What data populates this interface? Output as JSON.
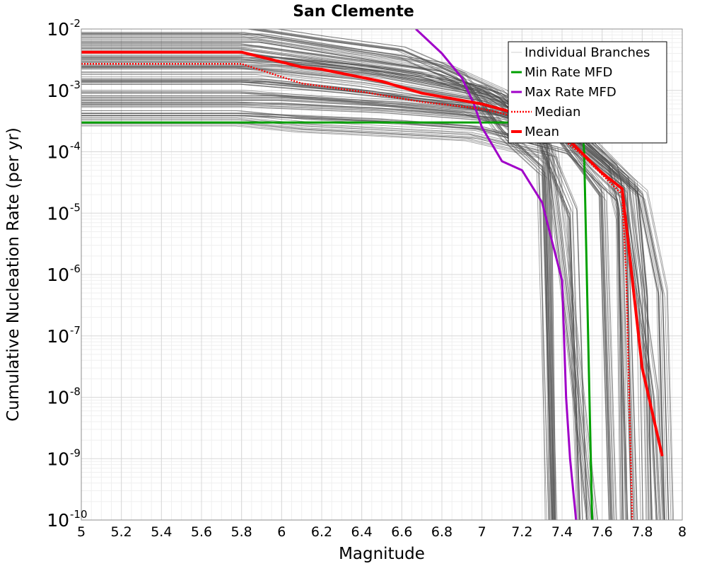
{
  "chart_data": {
    "type": "line",
    "title": "San Clemente",
    "xlabel": "Magnitude",
    "ylabel": "Cumulative Nucleation Rate (per yr)",
    "xlim": [
      5,
      8
    ],
    "ylim": [
      1e-10,
      0.01
    ],
    "yscale": "log",
    "grid": true,
    "legend_position": "top-right",
    "x_ticks": [
      "5",
      "5.2",
      "5.4",
      "5.6",
      "5.8",
      "6",
      "6.2",
      "6.4",
      "6.6",
      "6.8",
      "7",
      "7.2",
      "7.4",
      "7.6",
      "7.8",
      "8"
    ],
    "y_ticks": [
      {
        "base": "10",
        "exp": "-10",
        "value": 1e-10
      },
      {
        "base": "10",
        "exp": "-9",
        "value": 1e-09
      },
      {
        "base": "10",
        "exp": "-8",
        "value": 1e-08
      },
      {
        "base": "10",
        "exp": "-7",
        "value": 1e-07
      },
      {
        "base": "10",
        "exp": "-6",
        "value": 1e-06
      },
      {
        "base": "10",
        "exp": "-5",
        "value": 1e-05
      },
      {
        "base": "10",
        "exp": "-4",
        "value": 0.0001
      },
      {
        "base": "10",
        "exp": "-3",
        "value": 0.001
      },
      {
        "base": "10",
        "exp": "-2",
        "value": 0.01
      }
    ],
    "series": [
      {
        "name": "Individual Branches",
        "color": "#4d4d4d",
        "style": "thin",
        "note_count_shown": "many",
        "representative_curves": [
          {
            "x": [
              5,
              5.8,
              6.2,
              6.6,
              6.9,
              7.1,
              7.3,
              7.35
            ],
            "y": [
              0.0095,
              0.0095,
              0.006,
              0.004,
              0.0015,
              0.0002,
              5e-05,
              1e-10
            ]
          },
          {
            "x": [
              5,
              5.9,
              6.3,
              6.8,
              7.1,
              7.3,
              7.45,
              7.5
            ],
            "y": [
              0.0065,
              0.0065,
              0.004,
              0.0022,
              0.0008,
              0.00015,
              1e-05,
              1e-10
            ]
          },
          {
            "x": [
              5,
              5.8,
              6.2,
              6.7,
              7.1,
              7.4,
              7.6,
              7.65
            ],
            "y": [
              0.0045,
              0.0045,
              0.003,
              0.0018,
              0.0007,
              0.00015,
              2e-05,
              1e-10
            ]
          },
          {
            "x": [
              5,
              5.8,
              6.4,
              7.0,
              7.4,
              7.65,
              7.7,
              7.72
            ],
            "y": [
              0.003,
              0.003,
              0.002,
              0.0009,
              0.00025,
              5e-05,
              1e-05,
              1e-10
            ]
          },
          {
            "x": [
              5,
              5.9,
              6.4,
              7.0,
              7.5,
              7.75,
              7.8,
              7.82
            ],
            "y": [
              0.0018,
              0.0018,
              0.0012,
              0.0006,
              0.0002,
              3e-05,
              5e-07,
              1e-10
            ]
          },
          {
            "x": [
              5,
              5.8,
              6.3,
              6.9,
              7.4,
              7.7,
              7.85,
              7.88
            ],
            "y": [
              0.0011,
              0.0011,
              0.0008,
              0.0005,
              0.00018,
              3e-05,
              1e-08,
              1e-10
            ]
          },
          {
            "x": [
              5,
              6.0,
              6.6,
              7.1,
              7.5,
              7.8,
              7.9,
              7.93
            ],
            "y": [
              0.0007,
              0.0007,
              0.00055,
              0.0004,
              0.00015,
              2e-05,
              5e-07,
              1e-10
            ]
          },
          {
            "x": [
              5,
              5.8,
              6.5,
              7.0,
              7.45,
              7.7,
              7.75
            ],
            "y": [
              0.0005,
              0.0005,
              0.0004,
              0.0003,
              0.00012,
              2e-05,
              1e-10
            ]
          },
          {
            "x": [
              5,
              5.8,
              6.1,
              6.5,
              6.95,
              7.35,
              7.55
            ],
            "y": [
              0.00035,
              0.00035,
              0.00028,
              0.00024,
              0.0002,
              0.0001,
              1e-10
            ]
          },
          {
            "x": [
              5,
              6.0,
              6.5,
              7.0,
              7.3,
              7.32,
              7.34
            ],
            "y": [
              0.0026,
              0.0026,
              0.0018,
              0.0009,
              0.0002,
              1e-05,
              1e-10
            ]
          }
        ]
      },
      {
        "name": "Min Rate MFD",
        "color": "#00a000",
        "style": "solid",
        "x": [
          5,
          7.5,
          7.51,
          7.55
        ],
        "y": [
          0.0003,
          0.0003,
          0.0001,
          1e-10
        ]
      },
      {
        "name": "Max Rate MFD",
        "color": "#a000c8",
        "style": "solid",
        "x": [
          6.67,
          6.8,
          6.9,
          6.96,
          7.0,
          7.1,
          7.2,
          7.3,
          7.4,
          7.42,
          7.44,
          7.47
        ],
        "y": [
          0.01,
          0.004,
          0.0016,
          0.0006,
          0.00025,
          7e-05,
          5e-05,
          1.5e-05,
          8e-07,
          1e-08,
          1e-09,
          1e-10
        ]
      },
      {
        "name": "Median",
        "color": "#ff0000",
        "style": "dotted",
        "x": [
          5,
          5.8,
          6.1,
          6.4,
          6.7,
          7.0,
          7.3,
          7.5,
          7.7,
          7.72,
          7.75
        ],
        "y": [
          0.0027,
          0.0027,
          0.0013,
          0.00095,
          0.00065,
          0.0005,
          0.0003,
          9e-05,
          2e-05,
          1e-06,
          1e-10
        ]
      },
      {
        "name": "Mean",
        "color": "#ff0000",
        "style": "solid",
        "x": [
          5,
          5.8,
          6.1,
          6.2,
          6.5,
          6.7,
          7.0,
          7.2,
          7.35,
          7.5,
          7.6,
          7.7,
          7.8,
          7.9
        ],
        "y": [
          0.0042,
          0.0042,
          0.0024,
          0.0022,
          0.0014,
          0.0009,
          0.0006,
          0.0004,
          0.0003,
          9.5e-05,
          4.5e-05,
          2.5e-05,
          3e-08,
          1.1e-09
        ]
      }
    ]
  }
}
